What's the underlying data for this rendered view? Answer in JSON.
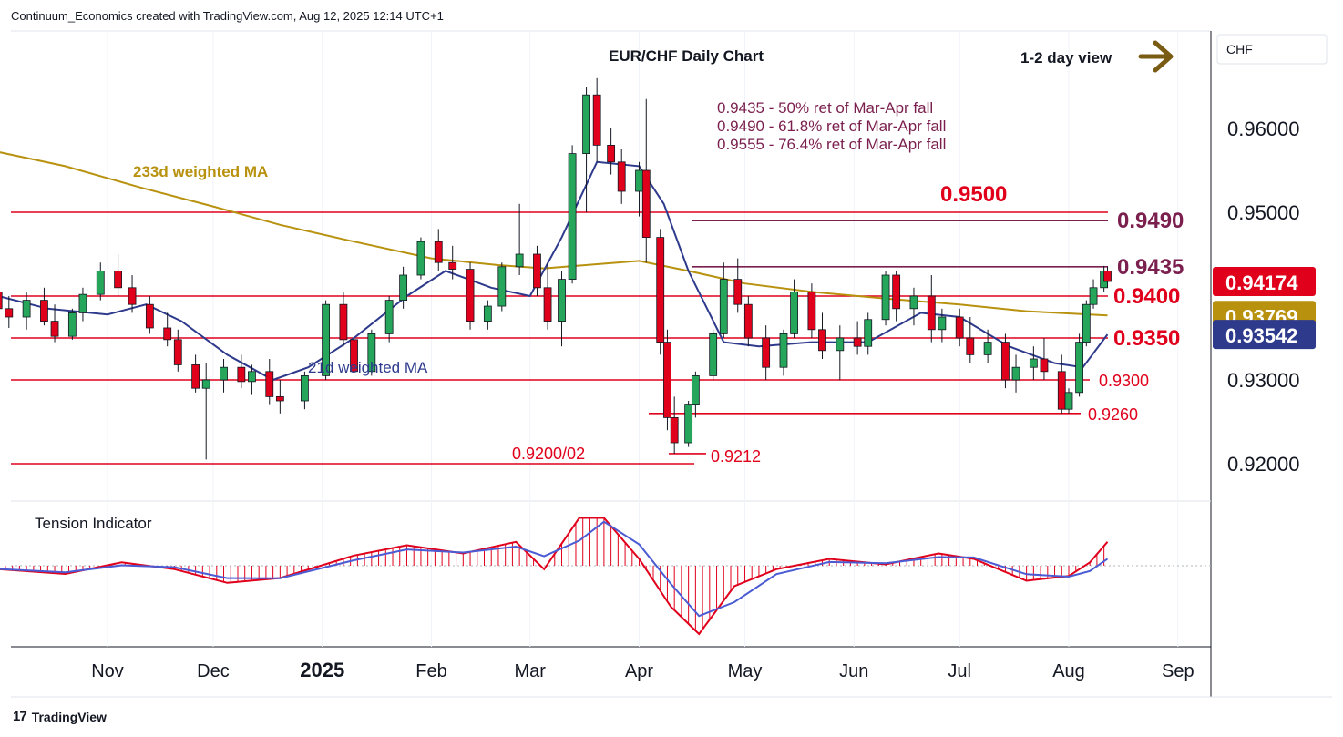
{
  "header": {
    "attribution": "Continuum_Economics created with TradingView.com, Aug 12, 2025 12:14 UTC+1"
  },
  "footer": {
    "brand": "TradingView",
    "logo_glyph": "17"
  },
  "currency": "CHF",
  "chart_data": {
    "type": "candlestick",
    "title": "EUR/CHF Daily Chart",
    "view_label": "1-2 day view",
    "view_arrow": "arrow-right-icon",
    "y_axis": {
      "range": [
        0.9155,
        0.971
      ],
      "ticks": [
        "0.96000",
        "0.95000",
        "0.93000",
        "0.92000"
      ],
      "tick_values": [
        0.96,
        0.95,
        0.93,
        0.92
      ]
    },
    "x_axis": {
      "labels": [
        "Nov",
        "Dec",
        "2025",
        "Feb",
        "Mar",
        "Apr",
        "May",
        "Jun",
        "Jul",
        "Aug",
        "Sep"
      ],
      "bold_labels": [
        "2025"
      ]
    },
    "price_tags": [
      {
        "text": "0.94174",
        "value": 0.94174,
        "color": "#e0001b"
      },
      {
        "text": "0.93769",
        "value": 0.93769,
        "color": "#b8920f"
      },
      {
        "text": "0.93542",
        "value": 0.93542,
        "color": "#2e3a8c"
      }
    ],
    "levels": [
      {
        "value": 0.95,
        "label": "0.9500",
        "color": "#e0001b"
      },
      {
        "value": 0.949,
        "label": "0.9490",
        "color": "#7a1f4e"
      },
      {
        "value": 0.9435,
        "label": "0.9435",
        "color": "#7a1f4e"
      },
      {
        "value": 0.94,
        "label": "0.9400",
        "color": "#e0001b"
      },
      {
        "value": 0.935,
        "label": "0.9350",
        "color": "#e0001b"
      },
      {
        "value": 0.93,
        "label": "0.9300",
        "color": "#e0001b"
      },
      {
        "value": 0.926,
        "label": "0.9260",
        "color": "#e0001b"
      },
      {
        "value": 0.9212,
        "label": "0.9212",
        "color": "#e0001b"
      },
      {
        "value": 0.92,
        "label": "0.9200/02",
        "color": "#e0001b"
      }
    ],
    "retracement_notes": [
      "0.9435 - 50% ret of Mar-Apr fall",
      "0.9490 - 61.8% ret of Mar-Apr fall",
      "0.9555 - 76.4% ret of Mar-Apr fall"
    ],
    "ma_labels": {
      "ma233": "233d weighted MA",
      "ma21": "21d weighted MA"
    },
    "series": [
      {
        "name": "233d weighted MA",
        "color": "#b8920f",
        "points": [
          [
            "2024-10-01",
            0.9572
          ],
          [
            "2024-10-20",
            0.9555
          ],
          [
            "2024-11-10",
            0.953
          ],
          [
            "2024-12-01",
            0.9507
          ],
          [
            "2024-12-20",
            0.9485
          ],
          [
            "2025-01-10",
            0.9465
          ],
          [
            "2025-02-01",
            0.9445
          ],
          [
            "2025-02-20",
            0.9437
          ],
          [
            "2025-03-05",
            0.9433
          ],
          [
            "2025-03-20",
            0.9438
          ],
          [
            "2025-04-01",
            0.9442
          ],
          [
            "2025-04-15",
            0.943
          ],
          [
            "2025-05-01",
            0.9415
          ],
          [
            "2025-05-20",
            0.9405
          ],
          [
            "2025-06-10",
            0.9397
          ],
          [
            "2025-07-01",
            0.939
          ],
          [
            "2025-07-20",
            0.9382
          ],
          [
            "2025-08-12",
            0.93769
          ]
        ]
      },
      {
        "name": "21d weighted MA",
        "color": "#2e3a8c",
        "points": [
          [
            "2024-10-01",
            0.94
          ],
          [
            "2024-10-15",
            0.9385
          ],
          [
            "2024-11-01",
            0.9378
          ],
          [
            "2024-11-12",
            0.939
          ],
          [
            "2024-11-22",
            0.937
          ],
          [
            "2024-12-05",
            0.933
          ],
          [
            "2024-12-18",
            0.93
          ],
          [
            "2024-12-28",
            0.9315
          ],
          [
            "2025-01-10",
            0.935
          ],
          [
            "2025-01-25",
            0.94
          ],
          [
            "2025-02-05",
            0.943
          ],
          [
            "2025-02-18",
            0.941
          ],
          [
            "2025-03-01",
            0.94
          ],
          [
            "2025-03-10",
            0.947
          ],
          [
            "2025-03-20",
            0.956
          ],
          [
            "2025-04-01",
            0.9555
          ],
          [
            "2025-04-08",
            0.951
          ],
          [
            "2025-04-15",
            0.943
          ],
          [
            "2025-04-25",
            0.9345
          ],
          [
            "2025-05-05",
            0.934
          ],
          [
            "2025-05-20",
            0.9345
          ],
          [
            "2025-06-05",
            0.9345
          ],
          [
            "2025-06-20",
            0.938
          ],
          [
            "2025-07-01",
            0.9375
          ],
          [
            "2025-07-15",
            0.934
          ],
          [
            "2025-07-28",
            0.932
          ],
          [
            "2025-08-05",
            0.9315
          ],
          [
            "2025-08-12",
            0.93542
          ]
        ]
      }
    ],
    "candles": [
      [
        "2024-10-01",
        0.9405,
        0.942,
        0.938,
        0.9385
      ],
      [
        "2024-10-04",
        0.9385,
        0.94,
        0.9362,
        0.9375
      ],
      [
        "2024-10-09",
        0.9375,
        0.9405,
        0.936,
        0.9395
      ],
      [
        "2024-10-14",
        0.9395,
        0.941,
        0.9365,
        0.937
      ],
      [
        "2024-10-17",
        0.937,
        0.939,
        0.9345,
        0.9352
      ],
      [
        "2024-10-22",
        0.9352,
        0.9385,
        0.9348,
        0.938
      ],
      [
        "2024-10-25",
        0.938,
        0.941,
        0.937,
        0.9402
      ],
      [
        "2024-10-30",
        0.9402,
        0.944,
        0.9395,
        0.943
      ],
      [
        "2024-11-04",
        0.943,
        0.945,
        0.94,
        0.941
      ],
      [
        "2024-11-08",
        0.941,
        0.9425,
        0.938,
        0.939
      ],
      [
        "2024-11-13",
        0.939,
        0.94,
        0.9355,
        0.9362
      ],
      [
        "2024-11-18",
        0.9362,
        0.938,
        0.934,
        0.9348
      ],
      [
        "2024-11-21",
        0.9348,
        0.936,
        0.931,
        0.9318
      ],
      [
        "2024-11-26",
        0.9318,
        0.933,
        0.9285,
        0.929
      ],
      [
        "2024-11-29",
        0.929,
        0.932,
        0.9205,
        0.93
      ],
      [
        "2024-12-04",
        0.93,
        0.9325,
        0.9285,
        0.9315
      ],
      [
        "2024-12-09",
        0.9315,
        0.933,
        0.929,
        0.9298
      ],
      [
        "2024-12-12",
        0.9298,
        0.9318,
        0.9282,
        0.931
      ],
      [
        "2024-12-17",
        0.931,
        0.9325,
        0.927,
        0.928
      ],
      [
        "2024-12-20",
        0.928,
        0.93,
        0.926,
        0.9275
      ],
      [
        "2024-12-27",
        0.9275,
        0.931,
        0.9265,
        0.9305
      ],
      [
        "2025-01-02",
        0.9305,
        0.9395,
        0.93,
        0.939
      ],
      [
        "2025-01-07",
        0.939,
        0.9405,
        0.934,
        0.9348
      ],
      [
        "2025-01-10",
        0.9348,
        0.936,
        0.9295,
        0.931
      ],
      [
        "2025-01-15",
        0.931,
        0.936,
        0.9305,
        0.9355
      ],
      [
        "2025-01-20",
        0.9355,
        0.94,
        0.9345,
        0.9395
      ],
      [
        "2025-01-24",
        0.9395,
        0.9435,
        0.9385,
        0.9425
      ],
      [
        "2025-01-29",
        0.9425,
        0.947,
        0.942,
        0.9465
      ],
      [
        "2025-02-03",
        0.9465,
        0.948,
        0.943,
        0.944
      ],
      [
        "2025-02-07",
        0.944,
        0.946,
        0.942,
        0.9432
      ],
      [
        "2025-02-12",
        0.9432,
        0.944,
        0.936,
        0.937
      ],
      [
        "2025-02-17",
        0.937,
        0.9395,
        0.936,
        0.9388
      ],
      [
        "2025-02-21",
        0.9388,
        0.944,
        0.9382,
        0.9435
      ],
      [
        "2025-02-26",
        0.9435,
        0.951,
        0.9425,
        0.945
      ],
      [
        "2025-03-03",
        0.945,
        0.946,
        0.94,
        0.941
      ],
      [
        "2025-03-06",
        0.941,
        0.944,
        0.936,
        0.937
      ],
      [
        "2025-03-10",
        0.937,
        0.943,
        0.934,
        0.942
      ],
      [
        "2025-03-13",
        0.942,
        0.958,
        0.9415,
        0.957
      ],
      [
        "2025-03-17",
        0.957,
        0.965,
        0.95,
        0.964
      ],
      [
        "2025-03-20",
        0.964,
        0.966,
        0.956,
        0.958
      ],
      [
        "2025-03-24",
        0.958,
        0.96,
        0.9545,
        0.956
      ],
      [
        "2025-03-27",
        0.956,
        0.9575,
        0.951,
        0.9525
      ],
      [
        "2025-04-01",
        0.9525,
        0.956,
        0.9495,
        0.955
      ],
      [
        "2025-04-03",
        0.955,
        0.9635,
        0.944,
        0.947
      ],
      [
        "2025-04-07",
        0.947,
        0.948,
        0.933,
        0.9345
      ],
      [
        "2025-04-09",
        0.9345,
        0.936,
        0.924,
        0.9255
      ],
      [
        "2025-04-11",
        0.9255,
        0.928,
        0.9212,
        0.9225
      ],
      [
        "2025-04-15",
        0.9225,
        0.9275,
        0.922,
        0.927
      ],
      [
        "2025-04-17",
        0.927,
        0.931,
        0.9255,
        0.9305
      ],
      [
        "2025-04-22",
        0.9305,
        0.936,
        0.93,
        0.9355
      ],
      [
        "2025-04-25",
        0.9355,
        0.944,
        0.935,
        0.942
      ],
      [
        "2025-04-29",
        0.942,
        0.9445,
        0.938,
        0.939
      ],
      [
        "2025-05-02",
        0.939,
        0.94,
        0.934,
        0.935
      ],
      [
        "2025-05-07",
        0.935,
        0.9365,
        0.93,
        0.9315
      ],
      [
        "2025-05-12",
        0.9315,
        0.936,
        0.9305,
        0.9355
      ],
      [
        "2025-05-15",
        0.9355,
        0.942,
        0.935,
        0.9405
      ],
      [
        "2025-05-20",
        0.9405,
        0.9415,
        0.935,
        0.936
      ],
      [
        "2025-05-23",
        0.936,
        0.938,
        0.9325,
        0.9335
      ],
      [
        "2025-05-28",
        0.9335,
        0.9365,
        0.93,
        0.935
      ],
      [
        "2025-06-02",
        0.935,
        0.937,
        0.933,
        0.934
      ],
      [
        "2025-06-05",
        0.934,
        0.938,
        0.933,
        0.9372
      ],
      [
        "2025-06-10",
        0.9372,
        0.943,
        0.9365,
        0.9425
      ],
      [
        "2025-06-13",
        0.9425,
        0.943,
        0.937,
        0.9385
      ],
      [
        "2025-06-18",
        0.9385,
        0.941,
        0.9365,
        0.94
      ],
      [
        "2025-06-23",
        0.94,
        0.9425,
        0.9345,
        0.936
      ],
      [
        "2025-06-26",
        0.936,
        0.9385,
        0.9345,
        0.9375
      ],
      [
        "2025-07-01",
        0.9375,
        0.9385,
        0.934,
        0.935
      ],
      [
        "2025-07-04",
        0.935,
        0.9375,
        0.932,
        0.933
      ],
      [
        "2025-07-09",
        0.933,
        0.936,
        0.932,
        0.9345
      ],
      [
        "2025-07-14",
        0.9345,
        0.9355,
        0.929,
        0.93
      ],
      [
        "2025-07-17",
        0.93,
        0.933,
        0.9285,
        0.9315
      ],
      [
        "2025-07-22",
        0.9315,
        0.934,
        0.93,
        0.9325
      ],
      [
        "2025-07-25",
        0.9325,
        0.935,
        0.93,
        0.931
      ],
      [
        "2025-07-30",
        0.931,
        0.933,
        0.926,
        0.9265
      ],
      [
        "2025-08-01",
        0.9265,
        0.929,
        0.926,
        0.9285
      ],
      [
        "2025-08-04",
        0.9285,
        0.9355,
        0.928,
        0.9345
      ],
      [
        "2025-08-06",
        0.9345,
        0.9395,
        0.934,
        0.939
      ],
      [
        "2025-08-08",
        0.939,
        0.942,
        0.9385,
        0.941
      ],
      [
        "2025-08-11",
        0.941,
        0.9436,
        0.9405,
        0.943
      ],
      [
        "2025-08-12",
        0.943,
        0.9435,
        0.941,
        0.94174
      ]
    ],
    "colors": {
      "up": "#26a65b",
      "down": "#e0001b",
      "candle_border": "#131722",
      "level_red": "#e0001b",
      "level_purple": "#7a1f4e",
      "ma233": "#b8920f",
      "ma21": "#2e3a8c",
      "tension_red": "#e0001b",
      "tension_blue": "#4a5bd4"
    },
    "tension": {
      "title": "Tension Indicator",
      "range": [
        -1,
        1
      ],
      "points": [
        [
          "2024-10-01",
          -0.05
        ],
        [
          "2024-10-20",
          -0.12
        ],
        [
          "2024-11-05",
          0.05
        ],
        [
          "2024-11-20",
          -0.05
        ],
        [
          "2024-12-05",
          -0.25
        ],
        [
          "2024-12-20",
          -0.18
        ],
        [
          "2025-01-10",
          0.15
        ],
        [
          "2025-01-25",
          0.3
        ],
        [
          "2025-02-10",
          0.18
        ],
        [
          "2025-02-25",
          0.35
        ],
        [
          "2025-03-05",
          -0.05
        ],
        [
          "2025-03-15",
          0.7
        ],
        [
          "2025-03-22",
          0.7
        ],
        [
          "2025-04-01",
          0.1
        ],
        [
          "2025-04-10",
          -0.6
        ],
        [
          "2025-04-18",
          -1.0
        ],
        [
          "2025-04-28",
          -0.3
        ],
        [
          "2025-05-10",
          -0.05
        ],
        [
          "2025-05-25",
          0.1
        ],
        [
          "2025-06-10",
          0.02
        ],
        [
          "2025-06-25",
          0.18
        ],
        [
          "2025-07-05",
          0.1
        ],
        [
          "2025-07-20",
          -0.22
        ],
        [
          "2025-08-01",
          -0.15
        ],
        [
          "2025-08-07",
          0.05
        ],
        [
          "2025-08-12",
          0.35
        ]
      ]
    }
  }
}
